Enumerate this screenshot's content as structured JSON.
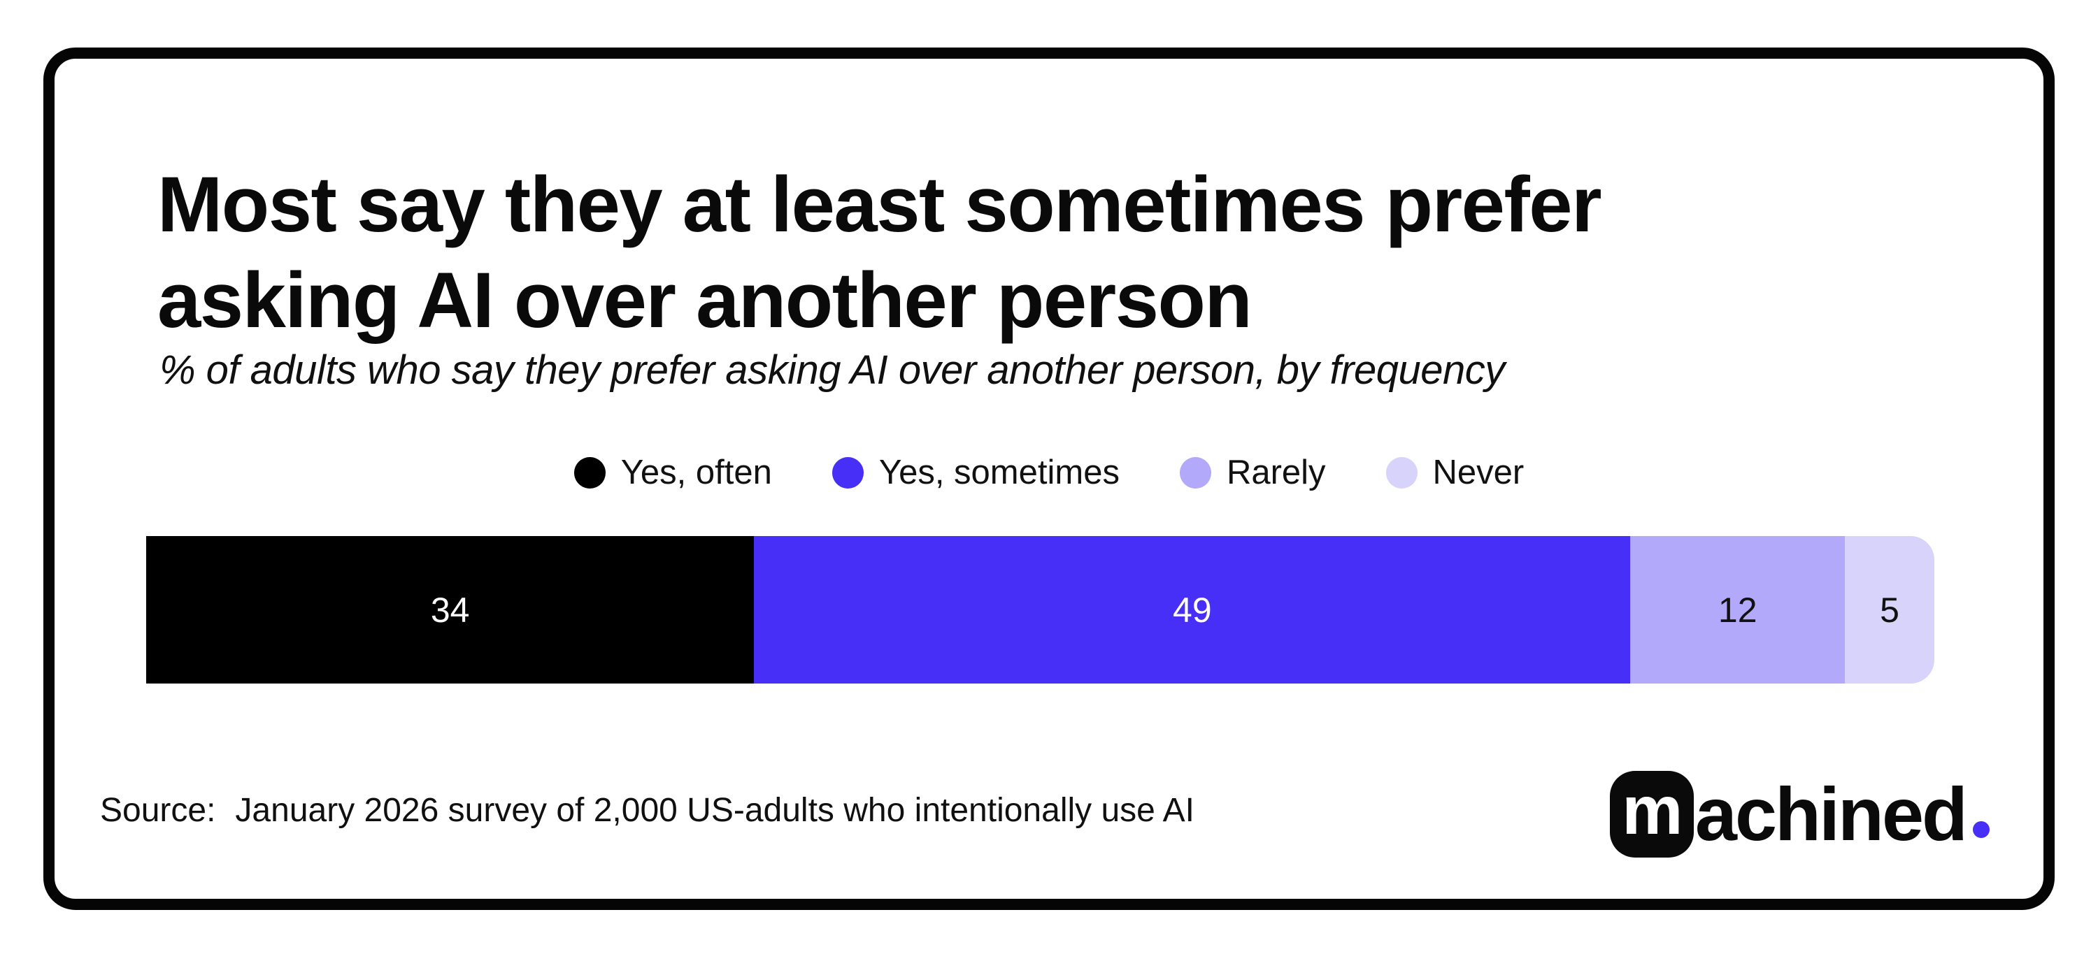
{
  "header": {
    "title": "Most say they at least sometimes prefer asking AI over another person",
    "subtitle": "% of adults who say they prefer asking AI over another person, by frequency"
  },
  "chart_data": {
    "type": "bar",
    "variant": "horizontal-stacked-100pct",
    "title": "Most say they at least sometimes prefer asking AI over another person",
    "subtitle": "% of adults who say they prefer asking AI over another person, by frequency",
    "unit": "%",
    "categories": [
      "Yes, often",
      "Yes, sometimes",
      "Rarely",
      "Never"
    ],
    "values": [
      34,
      49,
      12,
      5
    ],
    "colors": [
      "#000000",
      "#472FF7",
      "#B2A9FA",
      "#D8D3FA"
    ],
    "value_label_colors": [
      "#FFFFFF",
      "#FFFFFF",
      "#111111",
      "#111111"
    ],
    "xlim": [
      0,
      100
    ],
    "grid": false,
    "legend_position": "top-center"
  },
  "source": {
    "prefix": "Source:",
    "text": "January 2026 survey of 2,000 US-adults who intentionally use AI"
  },
  "logo": {
    "mark_letter": "m",
    "wordmark": "achined",
    "accent_color": "#472FF7",
    "mark_color": "#0A0A0A"
  }
}
